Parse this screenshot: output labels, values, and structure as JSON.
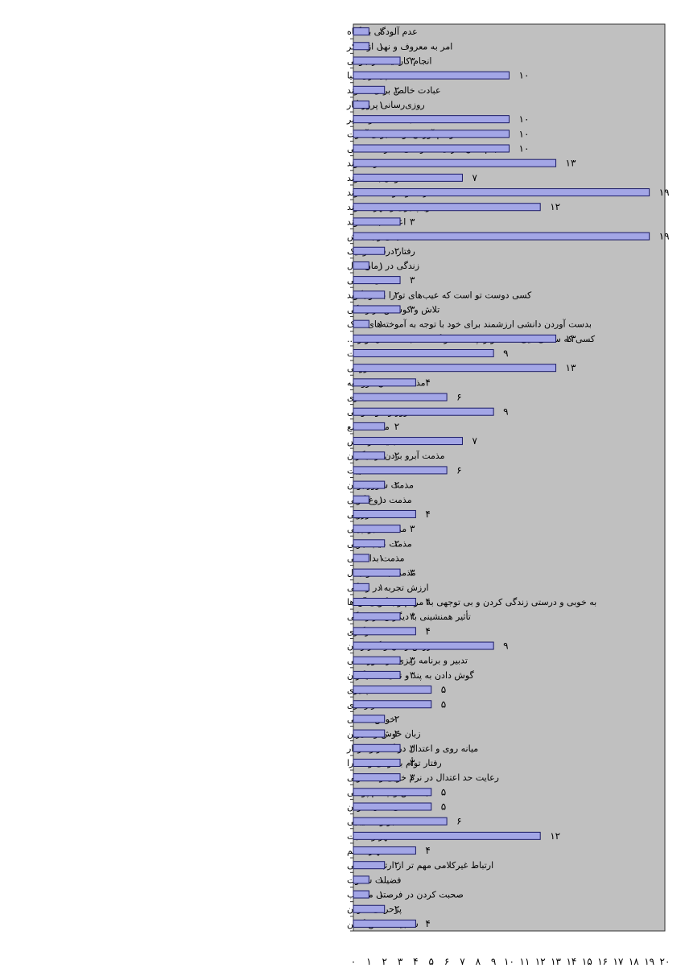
{
  "chart_data": {
    "type": "bar",
    "orientation": "horizontal",
    "categories": [
      "عدم آلودگی به گناه",
      "امر به معروف و نهی از منکر",
      "انجام کار نیک در جوانی",
      "ناپایداری دنیا",
      "عبادت خالص برای خداوند",
      "روزی‌رسانی پروردگار",
      "اعتقاد به قسمت و تقدیر",
      "فراهم آوردن توشه برای آخرت",
      "انجام دادن کار نیک تا زمانی که زنده هستی",
      "شکر خداوند",
      "توکل به خداوند",
      "اراده و خواست خداوند",
      "توبه‌پذیری و مهر خداوند",
      "اعتماد به خداوند",
      "نیکی و بخشش",
      "رفتار درست و نیک",
      "زندگی در زمان حال",
      "تحمل ناکامی",
      "کسی دوست تو است که عیب‌های تو را به تو بگوید",
      "تلاش و کوشش در زندگی",
      "بدست آوردن دانشی ارزشمند برای خود با توجه به آموخته‌های اندک",
      "کسی که سختی‌هایی مانند تو را پشت سر گذاشته باشد، حال تو را...",
      "قناعت",
      "فروتنی",
      "مذمت انسان فرومایه",
      "مذمت ستمکاری",
      "مذمت غرور و خودخواهی",
      "مذمت طمع",
      "مذمت تبعیت از نفس",
      "مذمت آبرو بردن از دیگران",
      "مذمت غیبت",
      "مذمت شرور بودن",
      "مذمت دروغ گویی",
      "مذمت دورویی",
      "مذمت خبر چینی",
      "مذمت عیب جویی",
      "مذمت بداخلاقی",
      "مذمت بحث و جدل",
      "ارزش تجربه در زندگی",
      "به خوبی و درستی زندگی کردن و بی توجهی به مردم و بدگویی آن ها",
      "تأثیر همنشینی با دیگران در زندگی",
      "سازگاری",
      "ارزش زمان و گذر زمان",
      "تدبیر و برنامه ریزی در امور مالی",
      "گوش دادن به پند و نصیحت دیگران",
      "انتقادپذیری",
      "رازداری",
      "خوش اخلاقی",
      "زبان خوش و شیرین",
      "میانه روی و اعتدال در گفتار و کردار",
      "رفتار توأم با نرمی و مدارا",
      "رعایت حد اعتدال در نرم خویی و تندخویی",
      "بخشش و چشم پوشی",
      "تکاهلی عمل نکردن",
      "صبر و شکیبایی",
      "مهر و محبت",
      "مهار خشم",
      "ارتباط غیرکلامی مهم تر از ارتباط کلامی",
      "فضیلت سکوت",
      "صحبت کردن در فرصتی مناسب",
      "پرحرفی نکردن",
      "سنجیده سخن گفتن"
    ],
    "values": [
      1,
      1,
      3,
      10,
      2,
      1,
      10,
      10,
      10,
      13,
      7,
      19,
      12,
      3,
      19,
      2,
      1,
      3,
      2,
      3,
      1,
      13,
      9,
      13,
      4,
      6,
      9,
      2,
      7,
      2,
      6,
      2,
      1,
      4,
      3,
      2,
      1,
      3,
      1,
      4,
      3,
      4,
      9,
      3,
      3,
      5,
      5,
      2,
      2,
      3,
      3,
      3,
      5,
      5,
      6,
      12,
      4,
      2,
      1,
      1,
      2,
      4
    ],
    "value_labels": [
      "۱",
      "۱",
      "۳",
      "۱۰",
      "۲",
      "۱",
      "۱۰",
      "۱۰",
      "۱۰",
      "۱۳",
      "۷",
      "۱۹",
      "۱۲",
      "۳",
      "۱۹",
      "۲",
      "۱",
      "۳",
      "۲",
      "۳",
      "۱",
      "۱۳",
      "۹",
      "۱۳",
      "۴",
      "۶",
      "۹",
      "۲",
      "۷",
      "۲",
      "۶",
      "۲",
      "۱",
      "۴",
      "۳",
      "۲",
      "۱",
      "۳",
      "۱",
      "۴",
      "۳",
      "۴",
      "۹",
      "۳",
      "۳",
      "۵",
      "۵",
      "۲",
      "۲",
      "۳",
      "۳",
      "۳",
      "۵",
      "۵",
      "۶",
      "۱۲",
      "۴",
      "۲",
      "۱",
      "۱",
      "۲",
      "۴"
    ],
    "x_tick_labels": [
      "۰",
      "۱",
      "۲",
      "۳",
      "۴",
      "۵",
      "۶",
      "۷",
      "۸",
      "۹",
      "۱۰",
      "۱۱",
      "۱۲",
      "۱۳",
      "۱۴",
      "۱۵",
      "۱۶",
      "۱۷",
      "۱۸",
      "۱۹",
      "۲۰"
    ],
    "xlim": [
      0,
      20
    ],
    "grid": false,
    "legend": "none",
    "title": "",
    "xlabel": "",
    "ylabel": "",
    "colors": {
      "plot_background": "#c0c0c0",
      "bar_fill": "#a3a6e6",
      "bar_stroke": "#1a1a66",
      "axis": "#333333",
      "text": "#000000"
    }
  }
}
